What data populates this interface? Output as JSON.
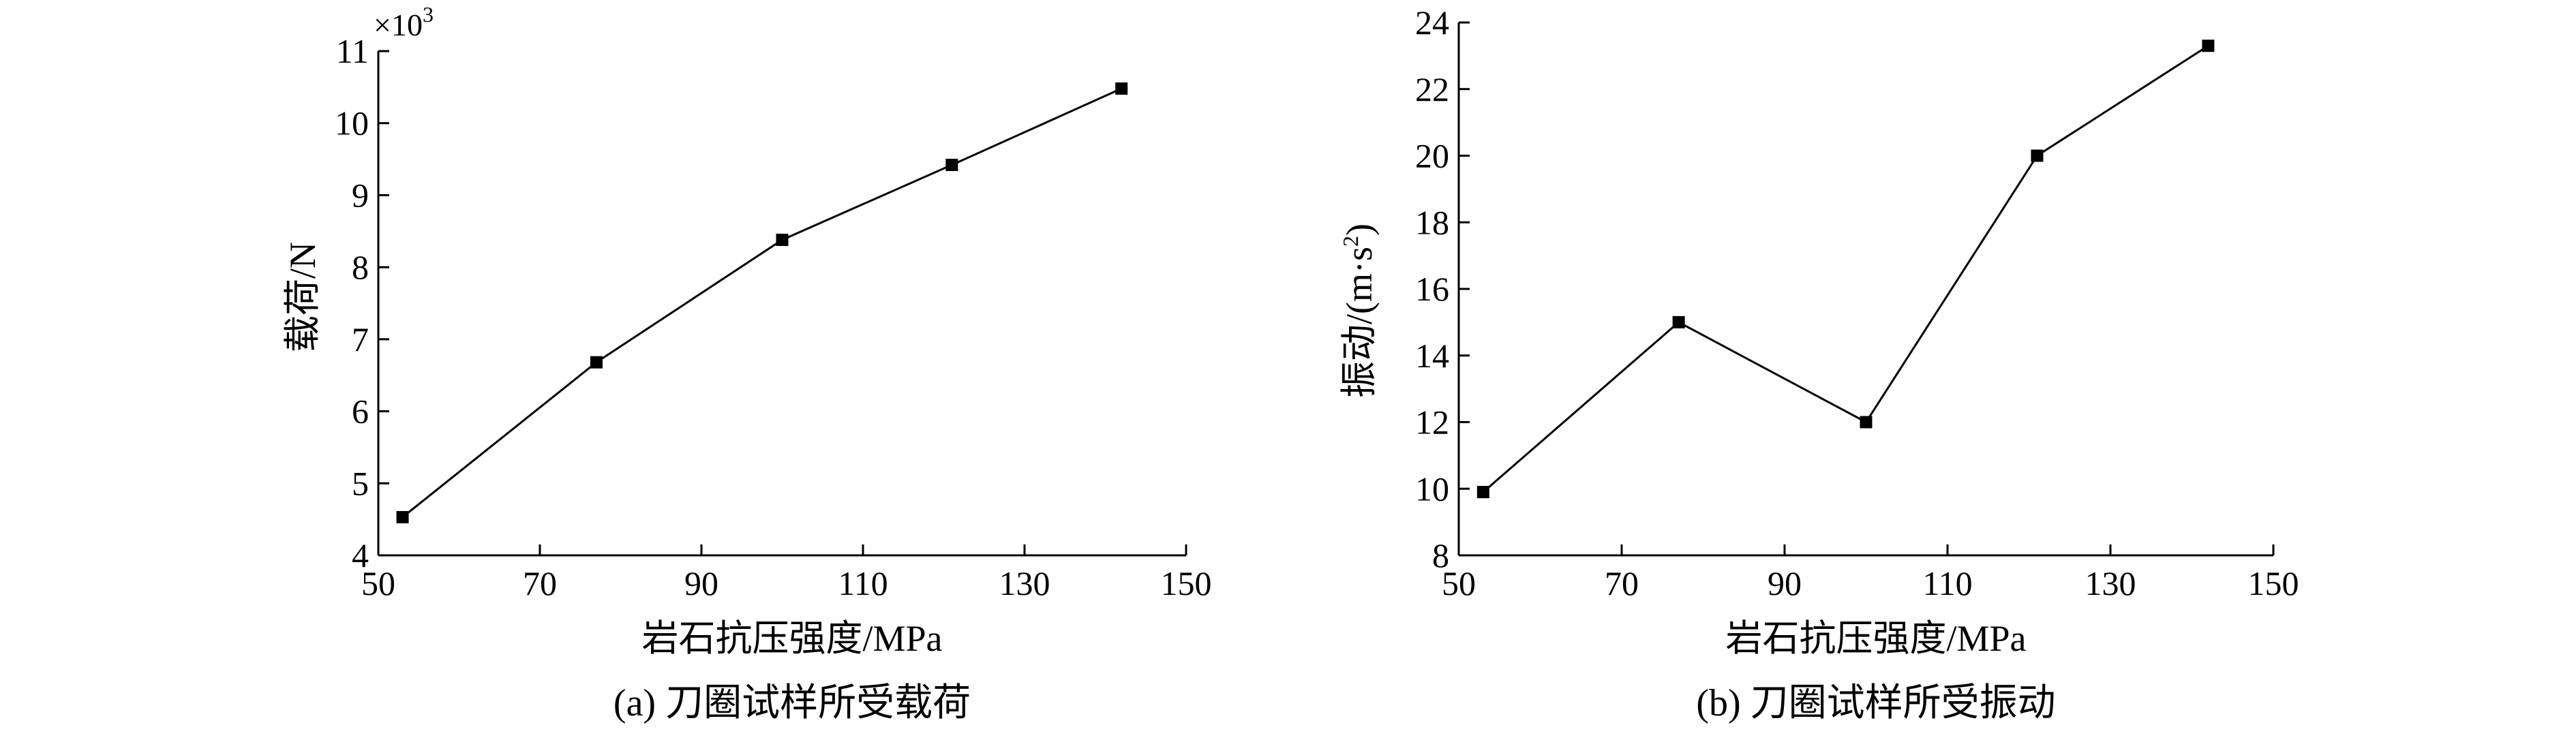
{
  "chart_data": [
    {
      "type": "line",
      "caption": "(a) 刀圈试样所受载荷",
      "xlabel": "岩石抗压强度/MPa",
      "ylabel": "载荷/N",
      "y_multiplier": "×10",
      "y_multiplier_exp": "3",
      "xlim": [
        50,
        150
      ],
      "ylim": [
        4,
        11
      ],
      "xticks": [
        50,
        70,
        90,
        110,
        130,
        150
      ],
      "yticks": [
        4,
        5,
        6,
        7,
        8,
        9,
        10,
        11
      ],
      "marker": "square",
      "series": [
        {
          "x": [
            53,
            77,
            100,
            121,
            142
          ],
          "y": [
            4.53,
            6.68,
            8.38,
            9.42,
            10.48
          ]
        }
      ]
    },
    {
      "type": "line",
      "caption": "(b) 刀圈试样所受振动",
      "xlabel": "岩石抗压强度/MPa",
      "ylabel": "振动/(m·s",
      "ylabel_exp": "2",
      "ylabel_close": ")",
      "xlim": [
        50,
        150
      ],
      "ylim": [
        8,
        24
      ],
      "xticks": [
        50,
        70,
        90,
        110,
        130,
        150
      ],
      "yticks": [
        8,
        10,
        12,
        14,
        16,
        18,
        20,
        22,
        24
      ],
      "marker": "square",
      "series": [
        {
          "x": [
            53,
            77,
            100,
            121,
            142
          ],
          "y": [
            9.9,
            15.0,
            12.0,
            20.0,
            23.3
          ]
        }
      ]
    }
  ]
}
